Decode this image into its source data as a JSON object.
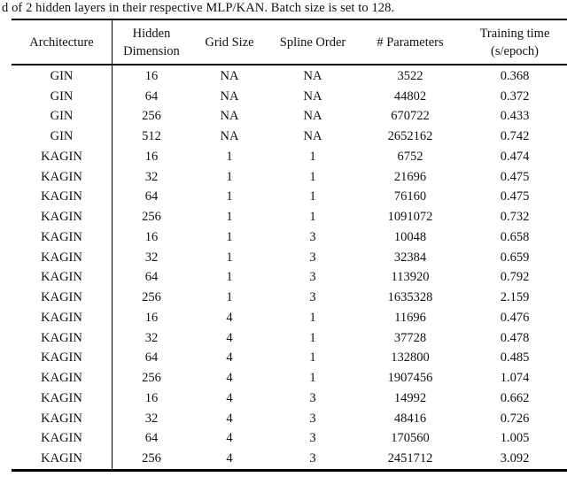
{
  "caption": "d of 2 hidden layers in their respective MLP/KAN. Batch size is set to 128.",
  "colors": {
    "text": "#111111",
    "rule": "#000000",
    "background": "#ffffff"
  },
  "table": {
    "headers": [
      {
        "id": "architecture",
        "lines": [
          "Architecture"
        ]
      },
      {
        "id": "hidden-dimension",
        "lines": [
          "Hidden",
          "Dimension"
        ]
      },
      {
        "id": "grid-size",
        "lines": [
          "Grid Size"
        ]
      },
      {
        "id": "spline-order",
        "lines": [
          "Spline Order"
        ]
      },
      {
        "id": "parameters",
        "lines": [
          "# Parameters"
        ]
      },
      {
        "id": "training-time",
        "lines": [
          "Training time",
          "(s/epoch)"
        ]
      }
    ],
    "rows": [
      [
        "GIN",
        "16",
        "NA",
        "NA",
        "3522",
        "0.368"
      ],
      [
        "GIN",
        "64",
        "NA",
        "NA",
        "44802",
        "0.372"
      ],
      [
        "GIN",
        "256",
        "NA",
        "NA",
        "670722",
        "0.433"
      ],
      [
        "GIN",
        "512",
        "NA",
        "NA",
        "2652162",
        "0.742"
      ],
      [
        "KAGIN",
        "16",
        "1",
        "1",
        "6752",
        "0.474"
      ],
      [
        "KAGIN",
        "32",
        "1",
        "1",
        "21696",
        "0.475"
      ],
      [
        "KAGIN",
        "64",
        "1",
        "1",
        "76160",
        "0.475"
      ],
      [
        "KAGIN",
        "256",
        "1",
        "1",
        "1091072",
        "0.732"
      ],
      [
        "KAGIN",
        "16",
        "1",
        "3",
        "10048",
        "0.658"
      ],
      [
        "KAGIN",
        "32",
        "1",
        "3",
        "32384",
        "0.659"
      ],
      [
        "KAGIN",
        "64",
        "1",
        "3",
        "113920",
        "0.792"
      ],
      [
        "KAGIN",
        "256",
        "1",
        "3",
        "1635328",
        "2.159"
      ],
      [
        "KAGIN",
        "16",
        "4",
        "1",
        "11696",
        "0.476"
      ],
      [
        "KAGIN",
        "32",
        "4",
        "1",
        "37728",
        "0.478"
      ],
      [
        "KAGIN",
        "64",
        "4",
        "1",
        "132800",
        "0.485"
      ],
      [
        "KAGIN",
        "256",
        "4",
        "1",
        "1907456",
        "1.074"
      ],
      [
        "KAGIN",
        "16",
        "4",
        "3",
        "14992",
        "0.662"
      ],
      [
        "KAGIN",
        "32",
        "4",
        "3",
        "48416",
        "0.726"
      ],
      [
        "KAGIN",
        "64",
        "4",
        "3",
        "170560",
        "1.005"
      ],
      [
        "KAGIN",
        "256",
        "4",
        "3",
        "2451712",
        "3.092"
      ]
    ]
  }
}
